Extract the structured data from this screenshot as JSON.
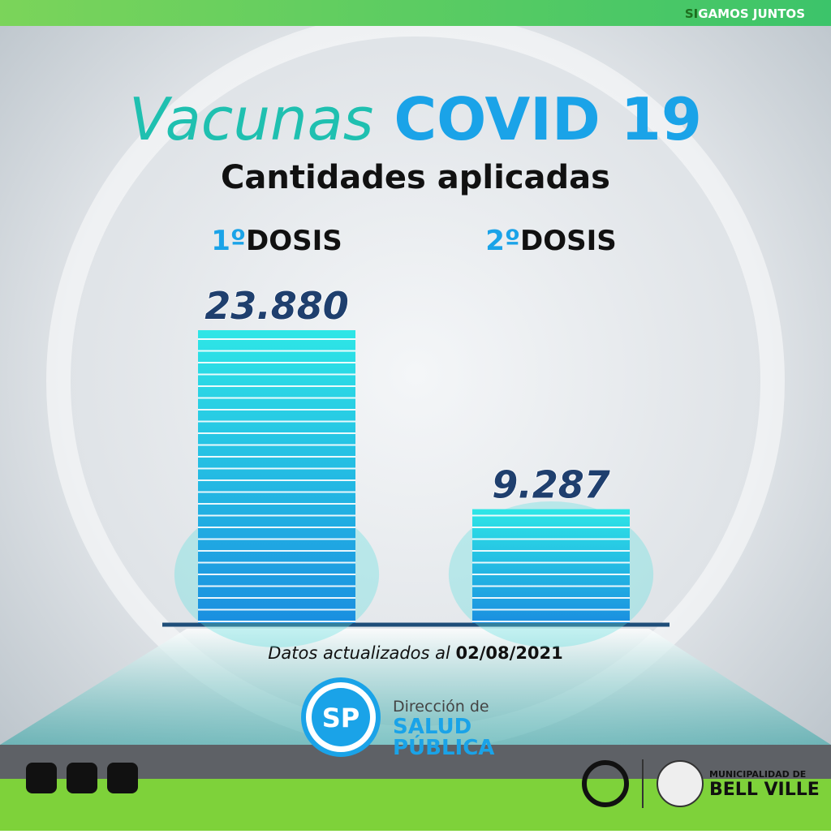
{
  "header": {
    "slogan_a": "SI",
    "slogan_b": "GAMOS JUNTOS"
  },
  "chart_data": {
    "type": "bar",
    "title_parts": [
      "Vacunas",
      "COVID 19"
    ],
    "subtitle": "Cantidades aplicadas",
    "categories": [
      "1ºDOSIS",
      "2ºDOSIS"
    ],
    "values": [
      23880,
      9287
    ],
    "value_labels": [
      "23.880",
      "9.287"
    ],
    "color": "#1aa3e8",
    "note_parts": [
      "Datos actualizados al",
      "02/08/2021"
    ]
  },
  "footer": {
    "logo_initials": "SP",
    "logo_line1": "Dirección de",
    "logo_line2": "SALUD",
    "logo_line3": "PÚBLICA",
    "municipality_line1": "MUNICIPALIDAD DE",
    "municipality_line2": "BELL VILLE"
  }
}
